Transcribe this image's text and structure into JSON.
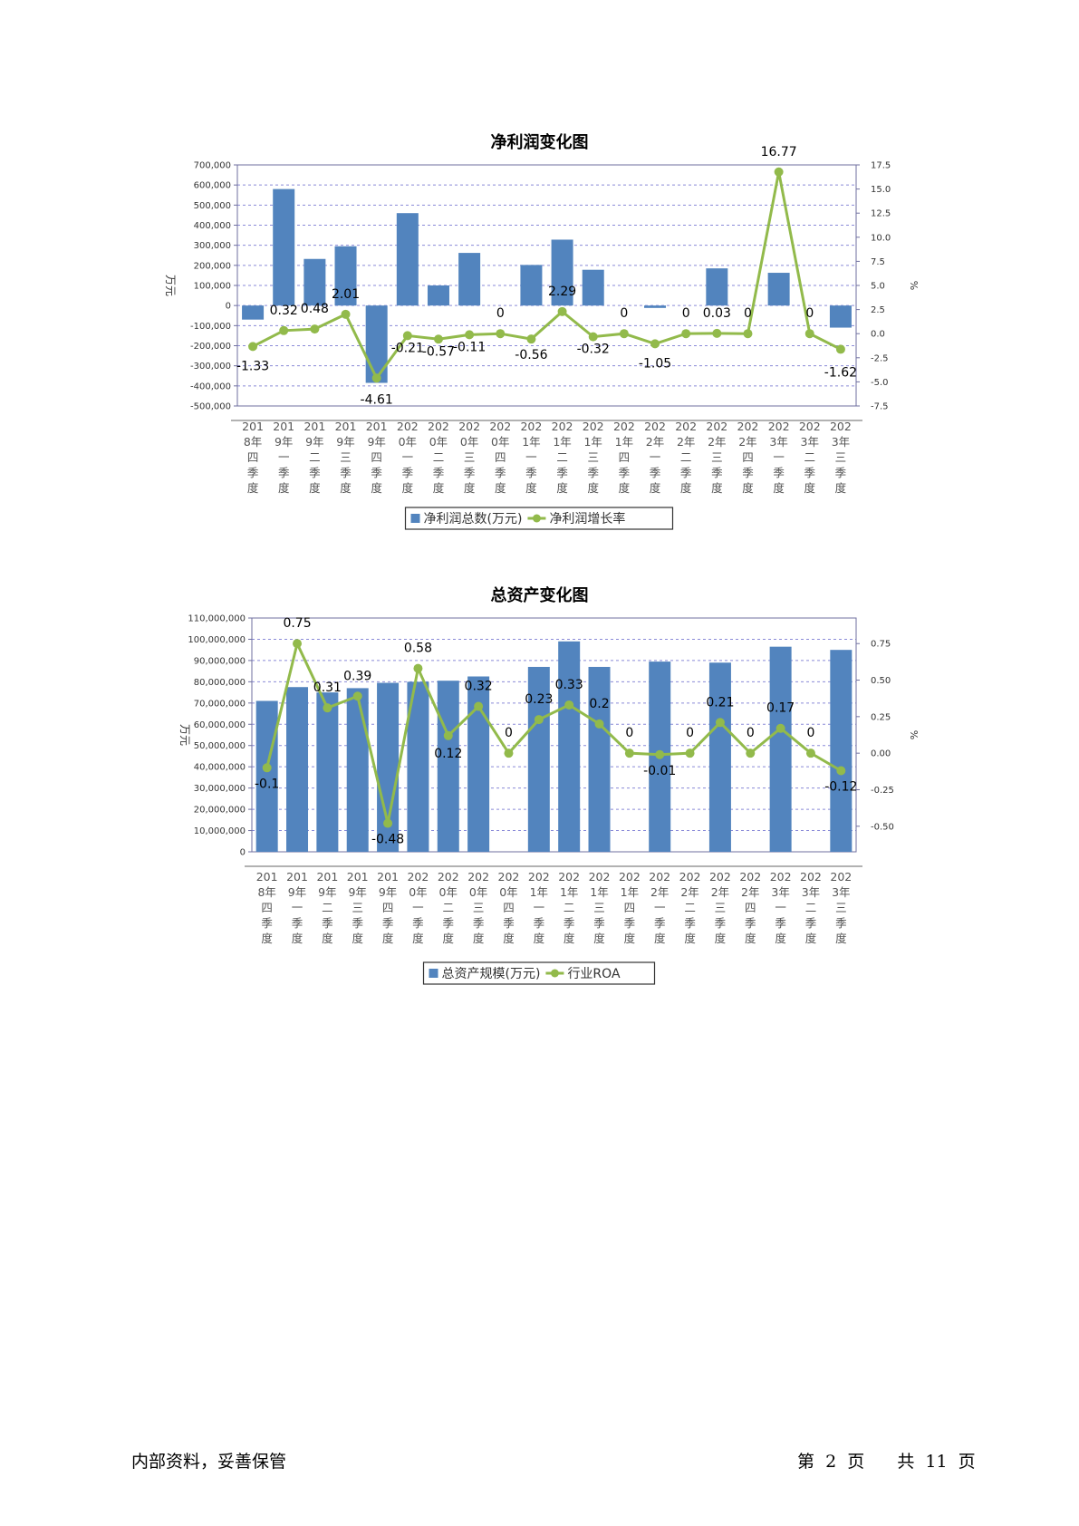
{
  "chart_data": [
    {
      "type": "bar+line",
      "title": "净利润变化图",
      "categories": [
        "2018年四季度",
        "2019年一季度",
        "2019年二季度",
        "2019年三季度",
        "2019年四季度",
        "2020年一季度",
        "2020年二季度",
        "2020年三季度",
        "2020年四季度",
        "2021年一季度",
        "2021年二季度",
        "2021年三季度",
        "2021年四季度",
        "2022年一季度",
        "2022年二季度",
        "2022年三季度",
        "2022年四季度",
        "2023年一季度",
        "2023年二季度",
        "2023年三季度"
      ],
      "category_labels": [
        [
          "201",
          "8年",
          "四",
          "季",
          "度"
        ],
        [
          "201",
          "9年",
          "一",
          "季",
          "度"
        ],
        [
          "201",
          "9年",
          "二",
          "季",
          "度"
        ],
        [
          "201",
          "9年",
          "三",
          "季",
          "度"
        ],
        [
          "201",
          "9年",
          "四",
          "季",
          "度"
        ],
        [
          "202",
          "0年",
          "一",
          "季",
          "度"
        ],
        [
          "202",
          "0年",
          "二",
          "季",
          "度"
        ],
        [
          "202",
          "0年",
          "三",
          "季",
          "度"
        ],
        [
          "202",
          "0年",
          "四",
          "季",
          "度"
        ],
        [
          "202",
          "1年",
          "一",
          "季",
          "度"
        ],
        [
          "202",
          "1年",
          "二",
          "季",
          "度"
        ],
        [
          "202",
          "1年",
          "三",
          "季",
          "度"
        ],
        [
          "202",
          "1年",
          "四",
          "季",
          "度"
        ],
        [
          "202",
          "2年",
          "一",
          "季",
          "度"
        ],
        [
          "202",
          "2年",
          "二",
          "季",
          "度"
        ],
        [
          "202",
          "2年",
          "三",
          "季",
          "度"
        ],
        [
          "202",
          "2年",
          "四",
          "季",
          "度"
        ],
        [
          "202",
          "3年",
          "一",
          "季",
          "度"
        ],
        [
          "202",
          "3年",
          "二",
          "季",
          "度"
        ],
        [
          "202",
          "3年",
          "三",
          "季",
          "度"
        ]
      ],
      "series": [
        {
          "name": "净利润总数(万元)",
          "kind": "bar",
          "axis": "left",
          "values": [
            -70000,
            580000,
            232000,
            295000,
            -385000,
            460000,
            100000,
            262000,
            0,
            202000,
            328000,
            178000,
            0,
            -12000,
            0,
            185000,
            0,
            163000,
            0,
            -110000
          ]
        },
        {
          "name": "净利润增长率",
          "kind": "line",
          "axis": "right",
          "values": [
            -1.33,
            0.32,
            0.48,
            2.01,
            -4.61,
            -0.21,
            -0.57,
            -0.11,
            0,
            -0.56,
            2.29,
            -0.32,
            0,
            -1.05,
            0,
            0.03,
            0,
            16.77,
            0,
            -1.62
          ],
          "labels": [
            "-1.33",
            "0.32",
            "0.48",
            "2.01",
            "-4.61",
            "-0.21",
            "-0.57",
            "-0.11",
            "0",
            "-0.56",
            "2.29",
            "-0.32",
            "0",
            "-1.05",
            "0",
            "0.03",
            "0",
            "16.77",
            "0",
            "-1.62"
          ]
        }
      ],
      "ylabel_left": "万元",
      "ylabel_right": "%",
      "ylim_left": [
        -500000,
        700000
      ],
      "yticks_left": [
        "700,000",
        "600,000",
        "500,000",
        "400,000",
        "300,000",
        "200,000",
        "100,000",
        "0",
        "-100,000",
        "-200,000",
        "-300,000",
        "-400,000",
        "-500,000"
      ],
      "ylim_right": [
        -7.5,
        17.5
      ],
      "yticks_right": [
        "17.5",
        "15.0",
        "12.5",
        "10.0",
        "7.5",
        "5.0",
        "2.5",
        "0.0",
        "-2.5",
        "-5.0",
        "-7.5"
      ],
      "grid": true,
      "legend_position": "bottom-center",
      "colors": {
        "bar": "#5284be",
        "line": "#92ba4b",
        "grid": "#8a8ad8",
        "axis": "#6f6f9f"
      }
    },
    {
      "type": "bar+line",
      "title": "总资产变化图",
      "categories": [
        "2018年四季度",
        "2019年一季度",
        "2019年二季度",
        "2019年三季度",
        "2019年四季度",
        "2020年一季度",
        "2020年二季度",
        "2020年三季度",
        "2020年四季度",
        "2021年一季度",
        "2021年二季度",
        "2021年三季度",
        "2021年四季度",
        "2022年一季度",
        "2022年二季度",
        "2022年三季度",
        "2022年四季度",
        "2023年一季度",
        "2023年二季度",
        "2023年三季度"
      ],
      "category_labels": [
        [
          "201",
          "8年",
          "四",
          "季",
          "度"
        ],
        [
          "201",
          "9年",
          "一",
          "季",
          "度"
        ],
        [
          "201",
          "9年",
          "二",
          "季",
          "度"
        ],
        [
          "201",
          "9年",
          "三",
          "季",
          "度"
        ],
        [
          "201",
          "9年",
          "四",
          "季",
          "度"
        ],
        [
          "202",
          "0年",
          "一",
          "季",
          "度"
        ],
        [
          "202",
          "0年",
          "二",
          "季",
          "度"
        ],
        [
          "202",
          "0年",
          "三",
          "季",
          "度"
        ],
        [
          "202",
          "0年",
          "四",
          "季",
          "度"
        ],
        [
          "202",
          "1年",
          "一",
          "季",
          "度"
        ],
        [
          "202",
          "1年",
          "二",
          "季",
          "度"
        ],
        [
          "202",
          "1年",
          "三",
          "季",
          "度"
        ],
        [
          "202",
          "1年",
          "四",
          "季",
          "度"
        ],
        [
          "202",
          "2年",
          "一",
          "季",
          "度"
        ],
        [
          "202",
          "2年",
          "二",
          "季",
          "度"
        ],
        [
          "202",
          "2年",
          "三",
          "季",
          "度"
        ],
        [
          "202",
          "2年",
          "四",
          "季",
          "度"
        ],
        [
          "202",
          "3年",
          "一",
          "季",
          "度"
        ],
        [
          "202",
          "3年",
          "二",
          "季",
          "度"
        ],
        [
          "202",
          "3年",
          "三",
          "季",
          "度"
        ]
      ],
      "series": [
        {
          "name": "总资产规模(万元)",
          "kind": "bar",
          "axis": "left",
          "values": [
            71000000,
            77500000,
            75000000,
            77000000,
            79500000,
            80000000,
            80500000,
            82500000,
            0,
            87000000,
            99000000,
            87000000,
            0,
            89500000,
            0,
            89000000,
            0,
            96500000,
            0,
            95000000
          ]
        },
        {
          "name": "行业ROA",
          "kind": "line",
          "axis": "right",
          "values": [
            -0.1,
            0.75,
            0.31,
            0.39,
            -0.48,
            0.58,
            0.12,
            0.32,
            0,
            0.23,
            0.33,
            0.2,
            0,
            -0.01,
            0,
            0.21,
            0,
            0.17,
            0,
            -0.12
          ],
          "labels": [
            "-0.1",
            "0.75",
            "0.31",
            "0.39",
            "-0.48",
            "0.58",
            "0.12",
            "0.32",
            "0",
            "0.23",
            "0.33",
            "0.2",
            "0",
            "-0.01",
            "0",
            "0.21",
            "0",
            "0.17",
            "0",
            "-0.12"
          ]
        }
      ],
      "ylabel_left": "万元",
      "ylabel_right": "%",
      "ylim_left": [
        0,
        110000000
      ],
      "yticks_left": [
        "110,000,000",
        "100,000,000",
        "90,000,000",
        "80,000,000",
        "70,000,000",
        "60,000,000",
        "50,000,000",
        "40,000,000",
        "30,000,000",
        "20,000,000",
        "10,000,000",
        "0"
      ],
      "ylim_right": [
        -0.675,
        0.925
      ],
      "yticks_right": [
        "0.75",
        "0.50",
        "0.25",
        "0.00",
        "-0.25",
        "-0.50"
      ],
      "grid": true,
      "legend_position": "bottom-center",
      "colors": {
        "bar": "#5284be",
        "line": "#92ba4b",
        "grid": "#8a8ad8",
        "axis": "#6f6f9f"
      }
    }
  ],
  "footer": {
    "left": "内部资料，妥善保管",
    "page_prefix": "第",
    "page_number": "2",
    "page_suffix": "页",
    "total_prefix": "共",
    "total_pages": "11",
    "total_suffix": "页"
  }
}
